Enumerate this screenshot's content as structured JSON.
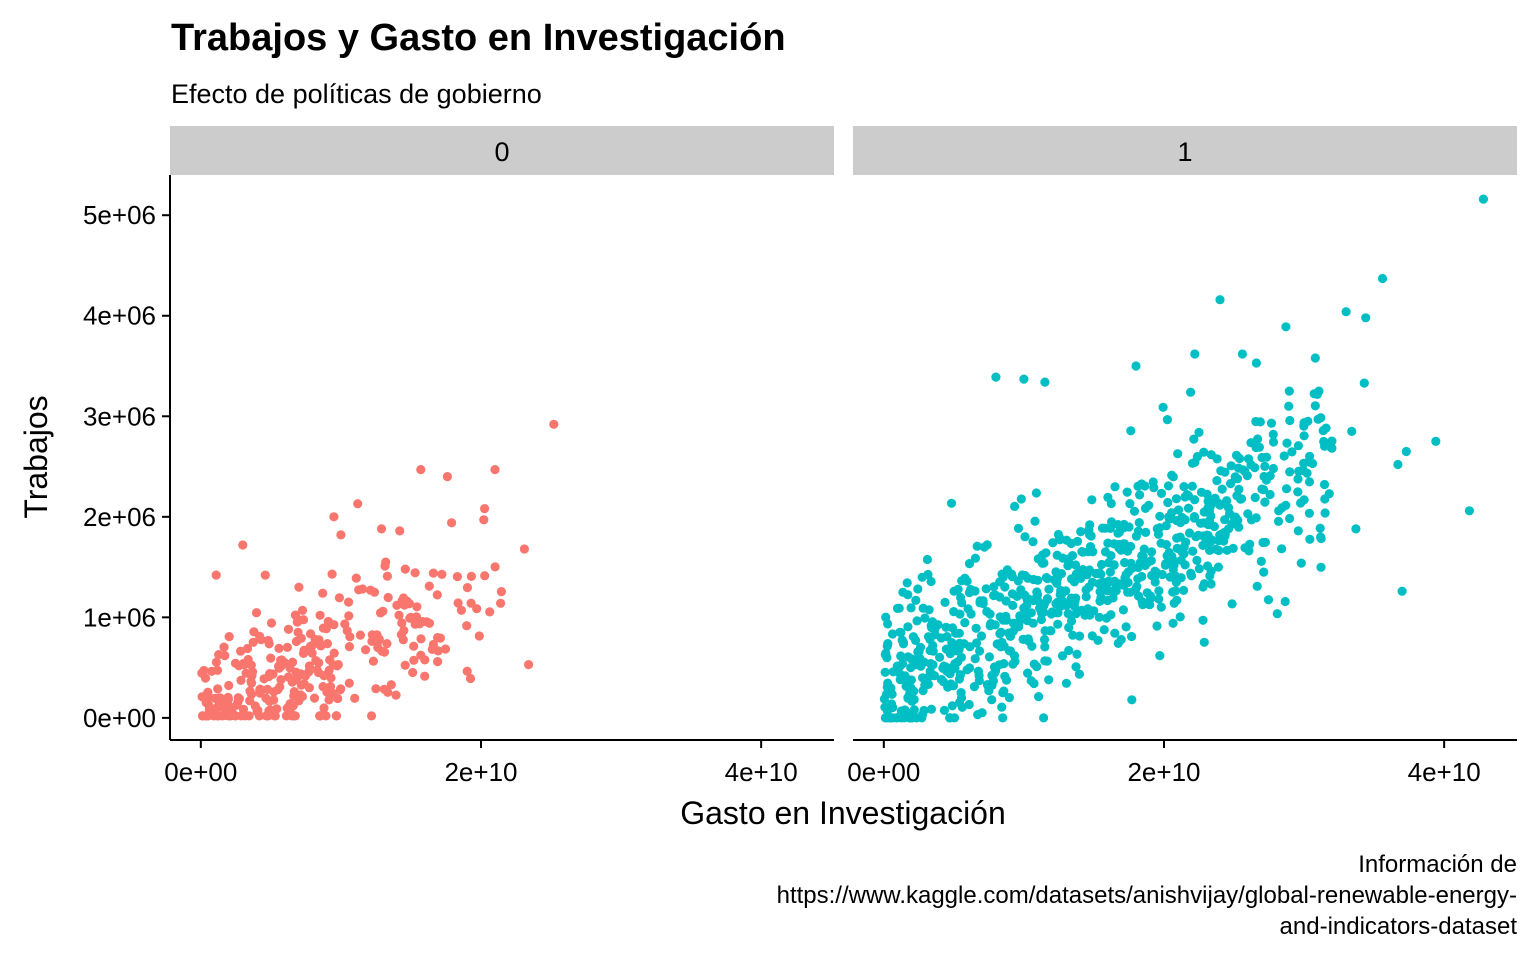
{
  "chart_data": {
    "type": "scatter",
    "title": "Trabajos y Gasto en Investigación",
    "subtitle": "Efecto de políticas de gobierno",
    "xlabel": "Gasto en Investigación",
    "ylabel": "Trabajos",
    "caption": [
      "Información de",
      "https://www.kaggle.com/datasets/anishvijay/global-renewable-energy-",
      "and-indicators-dataset"
    ],
    "xlim": [
      -2200000000,
      45200000000
    ],
    "ylim": [
      -220000,
      5400000
    ],
    "x_ticks": [
      0,
      20000000000,
      40000000000
    ],
    "x_tick_labels": [
      "0e+00",
      "2e+10",
      "4e+10"
    ],
    "y_ticks": [
      0,
      1000000,
      2000000,
      3000000,
      4000000,
      5000000
    ],
    "y_tick_labels": [
      "0e+00",
      "1e+06",
      "2e+06",
      "3e+06",
      "4e+06",
      "5e+06"
    ],
    "grid": false,
    "legend": "none",
    "facets": [
      {
        "label": "0",
        "color": "#F8766D",
        "n_points": 320,
        "points": [
          [
            25200000000,
            2920000
          ],
          [
            15700000000,
            2470000
          ],
          [
            21000000000,
            2470000
          ],
          [
            17600000000,
            2400000
          ],
          [
            20200000000,
            1970000
          ],
          [
            23100000000,
            1680000
          ],
          [
            21400000000,
            1140000
          ],
          [
            18600000000,
            1070000
          ],
          [
            23400000000,
            530000
          ],
          [
            16900000000,
            560000
          ],
          [
            9500000000,
            2000000
          ],
          [
            11200000000,
            2130000
          ],
          [
            12900000000,
            1880000
          ],
          [
            14200000000,
            1860000
          ],
          [
            14600000000,
            1480000
          ],
          [
            16600000000,
            1440000
          ],
          [
            17900000000,
            1940000
          ],
          [
            3000000000,
            1720000
          ],
          [
            1100000000,
            1420000
          ],
          [
            4600000000,
            1420000
          ],
          [
            7000000000,
            1300000
          ],
          [
            12500000000,
            290000
          ],
          [
            13600000000,
            330000
          ],
          [
            15000000000,
            1000000
          ],
          [
            16600000000,
            730000
          ],
          [
            8700000000,
            1240000
          ],
          [
            10000000000,
            1820000
          ],
          [
            11100000000,
            1390000
          ],
          [
            12400000000,
            1250000
          ],
          [
            13200000000,
            1550000
          ],
          [
            14000000000,
            1120000
          ]
        ]
      },
      {
        "label": "1",
        "color": "#00BFC4",
        "n_points": 820,
        "points": [
          [
            42800000000,
            5160000
          ],
          [
            35600000000,
            4370000
          ],
          [
            24000000000,
            4160000
          ],
          [
            33000000000,
            4040000
          ],
          [
            34400000000,
            3980000
          ],
          [
            28700000000,
            3890000
          ],
          [
            25600000000,
            3620000
          ],
          [
            30800000000,
            3580000
          ],
          [
            22200000000,
            3620000
          ],
          [
            26600000000,
            3530000
          ],
          [
            8000000000,
            3390000
          ],
          [
            10000000000,
            3370000
          ],
          [
            11500000000,
            3340000
          ],
          [
            18000000000,
            3500000
          ],
          [
            21900000000,
            3240000
          ],
          [
            37300000000,
            2650000
          ],
          [
            39400000000,
            2750000
          ],
          [
            41800000000,
            2060000
          ],
          [
            37000000000,
            1260000
          ],
          [
            33700000000,
            1880000
          ],
          [
            29800000000,
            1540000
          ],
          [
            31800000000,
            2230000
          ],
          [
            27800000000,
            2820000
          ],
          [
            25400000000,
            2580000
          ],
          [
            30600000000,
            2530000
          ],
          [
            28900000000,
            3100000
          ],
          [
            36700000000,
            2520000
          ],
          [
            33400000000,
            2850000
          ],
          [
            27000000000,
            2590000
          ],
          [
            22500000000,
            2840000
          ],
          [
            17700000000,
            180000
          ],
          [
            19700000000,
            620000
          ],
          [
            23400000000,
            1770000
          ],
          [
            16500000000,
            2300000
          ],
          [
            31000000000,
            2970000
          ],
          [
            34300000000,
            3330000
          ]
        ]
      }
    ]
  }
}
